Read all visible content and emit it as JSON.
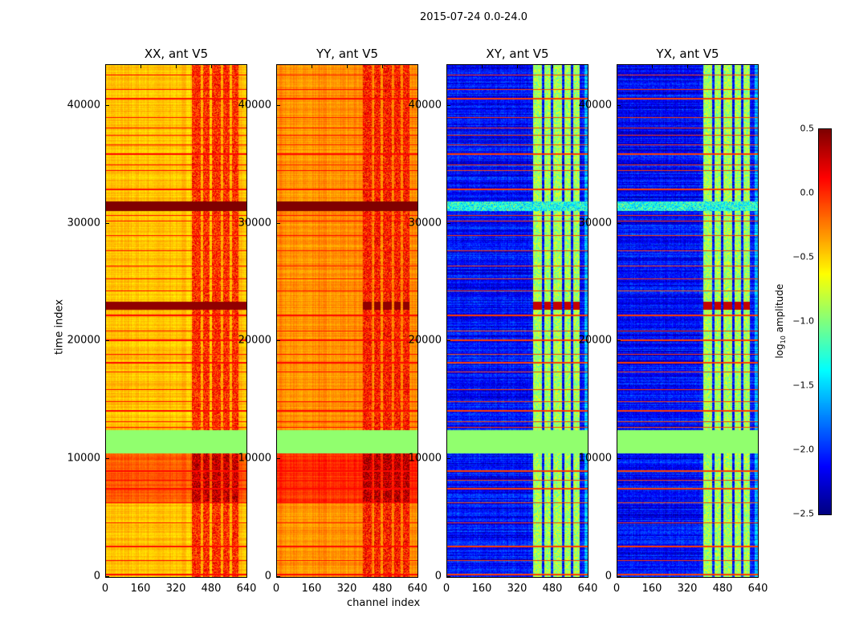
{
  "chart_data": {
    "type": "heatmap",
    "title": "2015-07-24 0.0-24.0",
    "xlabel": "channel index",
    "ylabel": "time index",
    "xlim": [
      0,
      640
    ],
    "ylim": [
      0,
      43600
    ],
    "x_ticks": [
      "0",
      "160",
      "320",
      "480",
      "640"
    ],
    "y_ticks": [
      "0",
      "10000",
      "20000",
      "30000",
      "40000"
    ],
    "colormap": "jet",
    "colorbar": {
      "label": "log10 amplitude",
      "label_main": "log",
      "label_sub": "10",
      "label_rest": " amplitude",
      "range": [
        -2.5,
        0.5
      ],
      "ticks": [
        "0.5",
        "0.0",
        "−0.5",
        "−1.0",
        "−1.5",
        "−2.0",
        "−2.5"
      ]
    },
    "panels": [
      {
        "title": "XX, ant V5",
        "base": -0.45,
        "rfi_channels_value": 0.0,
        "dark_band_value": 0.5
      },
      {
        "title": "YY, ant V5",
        "base": -0.3,
        "rfi_channels_value": 0.05,
        "dark_band_value": 0.5
      },
      {
        "title": "XY, ant V5",
        "base": -2.1,
        "rfi_channels_value": -0.9,
        "dark_band_value": -1.3
      },
      {
        "title": "YX, ant V5",
        "base": -2.1,
        "rfi_channels_value": -0.9,
        "dark_band_value": -1.3
      }
    ],
    "features": {
      "rfi_channel_ranges": [
        [
          390,
          430
        ],
        [
          440,
          470
        ],
        [
          480,
          520
        ],
        [
          530,
          560
        ],
        [
          570,
          600
        ]
      ],
      "flagged_time_range": [
        10600,
        12600
      ],
      "flagged_value": -0.95,
      "dark_time_ranges": [
        [
          31200,
          32000
        ],
        [
          22800,
          23500
        ]
      ],
      "elevated_time_range": [
        6400,
        10600
      ],
      "strong_rows": [
        300,
        1500,
        2700,
        4700,
        6400,
        7600,
        8300,
        9100,
        12800,
        13300,
        14200,
        15000,
        16000,
        17500,
        18300,
        19000,
        20200,
        21000,
        22300,
        24400,
        25400,
        26500,
        27800,
        29100,
        30300,
        30800,
        33000,
        34600,
        35100,
        36000,
        36800,
        37600,
        38200,
        39100,
        40700,
        41500,
        42700
      ]
    }
  }
}
